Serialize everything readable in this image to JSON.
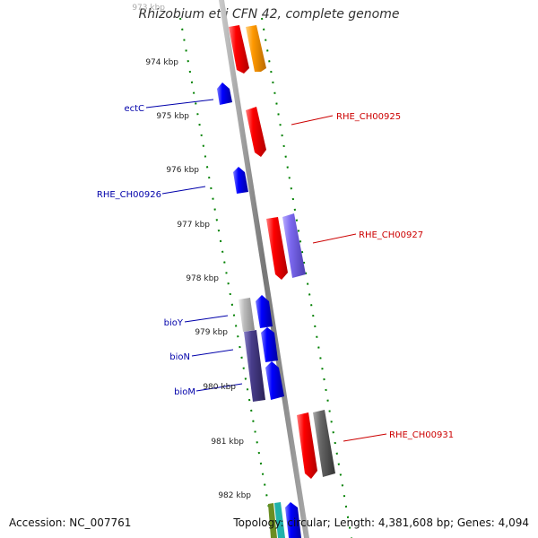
{
  "title": "Rhizobium etli CFN 42, complete genome",
  "accession": "Accession: NC_007761",
  "summary": "Topology: circular; Length: 4,381,608 bp; Genes: 4,094",
  "ticks": [
    "973 kbp",
    "974 kbp",
    "975 kbp",
    "976 kbp",
    "977 kbp",
    "978 kbp",
    "979 kbp",
    "980 kbp",
    "981 kbp",
    "982 kbp"
  ],
  "forward_labels": [
    "RHE_CH00925",
    "RHE_CH00927",
    "RHE_CH00931"
  ],
  "reverse_labels": [
    "ectC",
    "RHE_CH00926",
    "bioY",
    "bioN",
    "bioM"
  ],
  "colors": {
    "forward_label": "#cc0000",
    "reverse_label": "#0000aa",
    "tick": "#008000",
    "backbone": "#888888",
    "cds_red": "#ff0000",
    "cds_blue": "#0000ff",
    "cds_orange": "#ff9900",
    "cds_lavender": "#7b68ee",
    "cds_gray": "#666666",
    "cds_lightgray": "#bbbbbb",
    "cds_darkslate": "#483d8b"
  }
}
